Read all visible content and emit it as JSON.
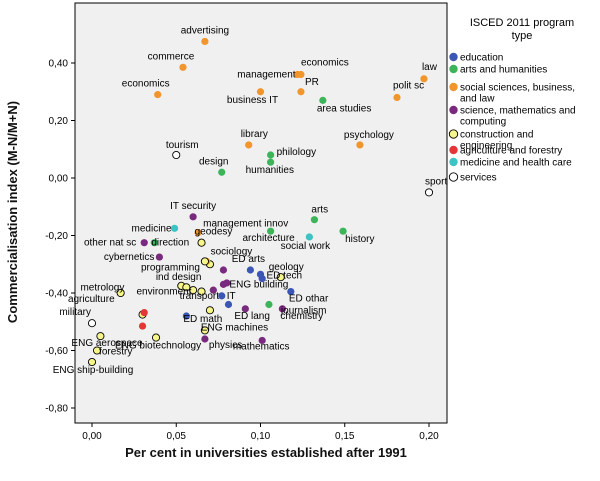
{
  "chart_data": {
    "type": "scatter",
    "title": "",
    "xlabel": "Per cent in universities established after 1991",
    "ylabel": "Commercialisation index (M-N/M+N)",
    "xlim": [
      -0.01,
      0.21
    ],
    "ylim": [
      -0.82,
      0.55
    ],
    "xticks": [
      0.0,
      0.05,
      0.1,
      0.15,
      0.2
    ],
    "xtick_labels": [
      "0,00",
      "0,05",
      "0,10",
      "0,15",
      "0,20"
    ],
    "yticks": [
      -0.8,
      -0.6,
      -0.4,
      -0.2,
      0.0,
      0.2,
      0.4
    ],
    "ytick_labels": [
      "-0,80",
      "-0,60",
      "-0,40",
      "-0,20",
      "0,00",
      "0,20",
      "0,40"
    ],
    "legend": {
      "title_lines": [
        "ISCED 2011 program",
        "type"
      ],
      "placement": "right",
      "entries": [
        {
          "key": "education",
          "lines": [
            "education"
          ],
          "color": "#3b56b5",
          "hollow": false
        },
        {
          "key": "arts",
          "lines": [
            "arts and humanities"
          ],
          "color": "#3cb45a",
          "hollow": false
        },
        {
          "key": "social",
          "lines": [
            "social sciences, business,",
            "and law"
          ],
          "color": "#f2962c",
          "hollow": false
        },
        {
          "key": "science",
          "lines": [
            "science, mathematics and",
            "computing"
          ],
          "color": "#7a2a7e",
          "hollow": false
        },
        {
          "key": "engineering",
          "lines": [
            "construction and",
            "engineering"
          ],
          "color": "#f5f58a",
          "hollow": true
        },
        {
          "key": "agriculture",
          "lines": [
            "agriculture and forestry"
          ],
          "color": "#e53535",
          "hollow": false
        },
        {
          "key": "health",
          "lines": [
            "medicine and health care"
          ],
          "color": "#3cc3c3",
          "hollow": false
        },
        {
          "key": "services",
          "lines": [
            "services"
          ],
          "color": "#ffffff",
          "hollow": true
        }
      ]
    },
    "points": [
      {
        "label": "advertising",
        "x": 0.067,
        "y": 0.475,
        "type": "social"
      },
      {
        "label": "commerce",
        "x": 0.054,
        "y": 0.385,
        "type": "social"
      },
      {
        "label": "economics",
        "x": 0.039,
        "y": 0.29,
        "type": "social"
      },
      {
        "label": "economics",
        "x": 0.124,
        "y": 0.36,
        "type": "social"
      },
      {
        "label": "management",
        "x": 0.122,
        "y": 0.36,
        "type": "social"
      },
      {
        "label": "PR",
        "x": 0.124,
        "y": 0.3,
        "type": "social"
      },
      {
        "label": "business IT",
        "x": 0.1,
        "y": 0.3,
        "type": "social"
      },
      {
        "label": "law",
        "x": 0.197,
        "y": 0.345,
        "type": "social"
      },
      {
        "label": "polit sc",
        "x": 0.181,
        "y": 0.28,
        "type": "social"
      },
      {
        "label": "area studies",
        "x": 0.137,
        "y": 0.27,
        "type": "arts"
      },
      {
        "label": "library",
        "x": 0.093,
        "y": 0.115,
        "type": "social"
      },
      {
        "label": "psychology",
        "x": 0.159,
        "y": 0.115,
        "type": "social"
      },
      {
        "label": "philology",
        "x": 0.106,
        "y": 0.08,
        "type": "arts"
      },
      {
        "label": "humanities",
        "x": 0.106,
        "y": 0.055,
        "type": "arts"
      },
      {
        "label": "design",
        "x": 0.077,
        "y": 0.02,
        "type": "arts"
      },
      {
        "label": "tourism",
        "x": 0.05,
        "y": 0.08,
        "type": "services"
      },
      {
        "label": "sport",
        "x": 0.2,
        "y": -0.05,
        "type": "services"
      },
      {
        "label": "arts",
        "x": 0.132,
        "y": -0.145,
        "type": "arts"
      },
      {
        "label": "IT security",
        "x": 0.06,
        "y": -0.135,
        "type": "science"
      },
      {
        "label": "management innov",
        "x": 0.063,
        "y": -0.19,
        "type": "social"
      },
      {
        "label": "medicine",
        "x": 0.049,
        "y": -0.175,
        "type": "health"
      },
      {
        "label": "architecture",
        "x": 0.106,
        "y": -0.185,
        "type": "arts"
      },
      {
        "label": "history",
        "x": 0.149,
        "y": -0.185,
        "type": "arts"
      },
      {
        "label": "social work",
        "x": 0.129,
        "y": -0.205,
        "type": "health"
      },
      {
        "label": "other nat sc",
        "x": 0.031,
        "y": -0.225,
        "type": "science"
      },
      {
        "label": "direction",
        "x": 0.037,
        "y": -0.225,
        "type": "arts"
      },
      {
        "label": "geodesy",
        "x": 0.065,
        "y": -0.225,
        "type": "engineering"
      },
      {
        "label": "cybernetics",
        "x": 0.04,
        "y": -0.275,
        "type": "science"
      },
      {
        "label": "sociology",
        "x": 0.068,
        "y": -0.29,
        "type": "social"
      },
      {
        "label": "programming",
        "x": 0.067,
        "y": -0.29,
        "type": "engineering"
      },
      {
        "label": "ED arts",
        "x": 0.094,
        "y": -0.32,
        "type": "education"
      },
      {
        "label": "ED tech",
        "x": 0.1,
        "y": -0.335,
        "type": "education"
      },
      {
        "label": "ind design",
        "x": 0.078,
        "y": -0.32,
        "type": "science"
      },
      {
        "label": "geology",
        "x": 0.112,
        "y": -0.345,
        "type": "engineering"
      },
      {
        "label": "metrology",
        "x": 0.056,
        "y": -0.38,
        "type": "engineering"
      },
      {
        "label": "ENG building",
        "x": 0.078,
        "y": -0.37,
        "type": "science"
      },
      {
        "label": "ED othar",
        "x": 0.118,
        "y": -0.395,
        "type": "education"
      },
      {
        "label": "agriculture",
        "x": 0.017,
        "y": -0.4,
        "type": "engineering"
      },
      {
        "label": "environment",
        "x": 0.065,
        "y": -0.395,
        "type": "engineering"
      },
      {
        "label": "transport",
        "x": 0.072,
        "y": -0.39,
        "type": "science"
      },
      {
        "label": "IT",
        "x": 0.077,
        "y": -0.41,
        "type": "education"
      },
      {
        "label": "journalism",
        "x": 0.105,
        "y": -0.44,
        "type": "arts"
      },
      {
        "label": "military",
        "x": 0.0,
        "y": -0.505,
        "type": "services"
      },
      {
        "label": "ED math",
        "x": 0.056,
        "y": -0.48,
        "type": "education"
      },
      {
        "label": "ED lang",
        "x": 0.091,
        "y": -0.455,
        "type": "science"
      },
      {
        "label": "chemistry",
        "x": 0.113,
        "y": -0.455,
        "type": "science"
      },
      {
        "label": "ENG aerospace",
        "x": 0.005,
        "y": -0.55,
        "type": "engineering"
      },
      {
        "label": "ENG machines",
        "x": 0.067,
        "y": -0.53,
        "type": "engineering"
      },
      {
        "label": "forestry",
        "x": 0.003,
        "y": -0.6,
        "type": "engineering"
      },
      {
        "label": "ENG biotechnology",
        "x": 0.038,
        "y": -0.555,
        "type": "engineering"
      },
      {
        "label": "physics",
        "x": 0.067,
        "y": -0.56,
        "type": "science"
      },
      {
        "label": "mathematics",
        "x": 0.101,
        "y": -0.565,
        "type": "science"
      },
      {
        "label": "ENG ship-building",
        "x": 0.0,
        "y": -0.64,
        "type": "engineering"
      }
    ],
    "unlabeled_points": [
      {
        "x": 0.03,
        "y": -0.475,
        "type": "engineering"
      },
      {
        "x": 0.03,
        "y": -0.515,
        "type": "agriculture"
      },
      {
        "x": 0.031,
        "y": -0.468,
        "type": "agriculture"
      },
      {
        "x": 0.06,
        "y": -0.39,
        "type": "engineering"
      },
      {
        "x": 0.053,
        "y": -0.375,
        "type": "engineering"
      },
      {
        "x": 0.07,
        "y": -0.46,
        "type": "engineering"
      },
      {
        "x": 0.07,
        "y": -0.3,
        "type": "engineering"
      },
      {
        "x": 0.081,
        "y": -0.44,
        "type": "education"
      },
      {
        "x": 0.08,
        "y": -0.365,
        "type": "science"
      },
      {
        "x": 0.101,
        "y": -0.35,
        "type": "education"
      }
    ]
  }
}
